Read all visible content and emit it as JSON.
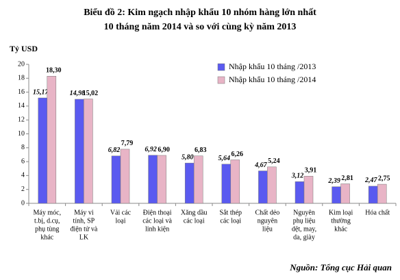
{
  "chart_data": {
    "type": "bar",
    "title": [
      "Biểu đồ 2: Kim ngạch nhập khẩu 10 nhóm hàng lớn nhất",
      "10 tháng năm 2014 và so với cùng kỳ năm 2013"
    ],
    "y_label": "Tỷ USD",
    "source": "Nguồn: Tổng cục Hải quan",
    "categories": [
      [
        "Máy móc,",
        "t.bị, d.cụ,",
        "phụ tùng",
        "khác"
      ],
      [
        "Máy vi",
        "tính, SP",
        "điện tử và",
        "LK"
      ],
      [
        "Vải các",
        "loại"
      ],
      [
        "Điện thoại",
        "các loại và",
        "linh kiện"
      ],
      [
        "Xăng dầu",
        "các loại"
      ],
      [
        "Sắt thép",
        "các loại"
      ],
      [
        "Chất dẻo",
        "nguyên",
        "liệu"
      ],
      [
        "Nguyên",
        "phụ liệu",
        "dệt, may,",
        "da, giày"
      ],
      [
        "Kim loại",
        "thường",
        "khác"
      ],
      [
        "Hóa chất"
      ]
    ],
    "series": [
      {
        "name": "Nhập khẩu 10 tháng /2013",
        "color": "#5a5af0",
        "values": [
          15.17,
          14.98,
          6.82,
          6.92,
          5.8,
          5.64,
          4.67,
          3.12,
          2.39,
          2.47
        ],
        "value_labels": [
          "15,17",
          "14,98",
          "6,82",
          "6,92",
          "5,80",
          "5,64",
          "4,67",
          "3,12",
          "2,39",
          "2,47"
        ]
      },
      {
        "name": "Nhập khẩu 10 tháng /2014",
        "color": "#e8b4c6",
        "values": [
          18.3,
          15.02,
          7.79,
          6.9,
          6.83,
          6.26,
          5.24,
          3.91,
          2.81,
          2.75
        ],
        "value_labels": [
          "18,30",
          "15,02",
          "7,79",
          "6,90",
          "6,83",
          "6,26",
          "5,24",
          "3,91",
          "2,81",
          "2,75"
        ]
      }
    ],
    "ylim": [
      0,
      20
    ],
    "yticks": [
      0,
      2,
      4,
      6,
      8,
      10,
      12,
      14,
      16,
      18,
      20
    ],
    "grid": false,
    "legend": "top-right"
  }
}
